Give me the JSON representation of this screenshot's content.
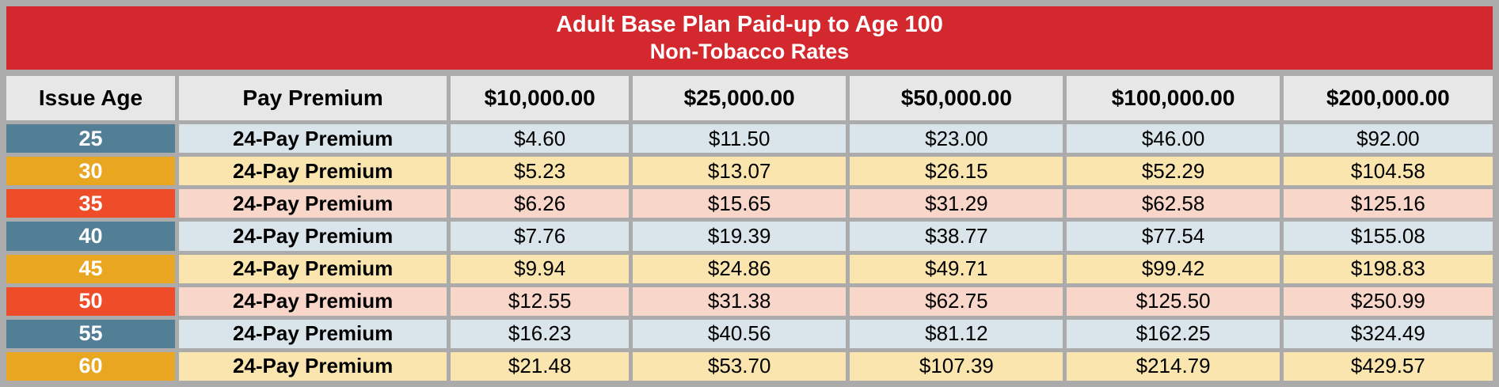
{
  "banner": {
    "title_line1": "Adult Base Plan Paid-up to Age 100",
    "title_line2": "Non-Tobacco Rates"
  },
  "colors": {
    "frame_gray": "#ABABAB",
    "banner_red": "#D2282E",
    "header_bg": "#E7E7E7",
    "age_blue": "#527E96",
    "age_amber": "#E9A621",
    "age_orange": "#EF4D2A",
    "row_blue": "#DAE5EB",
    "row_cream": "#FAE5AE",
    "row_pink": "#F8D6C9"
  },
  "table": {
    "columns": [
      "Issue Age",
      "Pay Premium",
      "$10,000.00",
      "$25,000.00",
      "$50,000.00",
      "$100,000.00",
      "$200,000.00"
    ],
    "rows": [
      {
        "age": "25",
        "premium_label": "24-Pay Premium",
        "age_color": "age_blue",
        "row_color": "row_blue",
        "values": [
          "$4.60",
          "$11.50",
          "$23.00",
          "$46.00",
          "$92.00"
        ]
      },
      {
        "age": "30",
        "premium_label": "24-Pay Premium",
        "age_color": "age_amber",
        "row_color": "row_cream",
        "values": [
          "$5.23",
          "$13.07",
          "$26.15",
          "$52.29",
          "$104.58"
        ]
      },
      {
        "age": "35",
        "premium_label": "24-Pay Premium",
        "age_color": "age_orange",
        "row_color": "row_pink",
        "values": [
          "$6.26",
          "$15.65",
          "$31.29",
          "$62.58",
          "$125.16"
        ]
      },
      {
        "age": "40",
        "premium_label": "24-Pay Premium",
        "age_color": "age_blue",
        "row_color": "row_blue",
        "values": [
          "$7.76",
          "$19.39",
          "$38.77",
          "$77.54",
          "$155.08"
        ]
      },
      {
        "age": "45",
        "premium_label": "24-Pay Premium",
        "age_color": "age_amber",
        "row_color": "row_cream",
        "values": [
          "$9.94",
          "$24.86",
          "$49.71",
          "$99.42",
          "$198.83"
        ]
      },
      {
        "age": "50",
        "premium_label": "24-Pay Premium",
        "age_color": "age_orange",
        "row_color": "row_pink",
        "values": [
          "$12.55",
          "$31.38",
          "$62.75",
          "$125.50",
          "$250.99"
        ]
      },
      {
        "age": "55",
        "premium_label": "24-Pay Premium",
        "age_color": "age_blue",
        "row_color": "row_blue",
        "values": [
          "$16.23",
          "$40.56",
          "$81.12",
          "$162.25",
          "$324.49"
        ]
      },
      {
        "age": "60",
        "premium_label": "24-Pay Premium",
        "age_color": "age_amber",
        "row_color": "row_cream",
        "values": [
          "$21.48",
          "$53.70",
          "$107.39",
          "$214.79",
          "$429.57"
        ]
      }
    ]
  }
}
